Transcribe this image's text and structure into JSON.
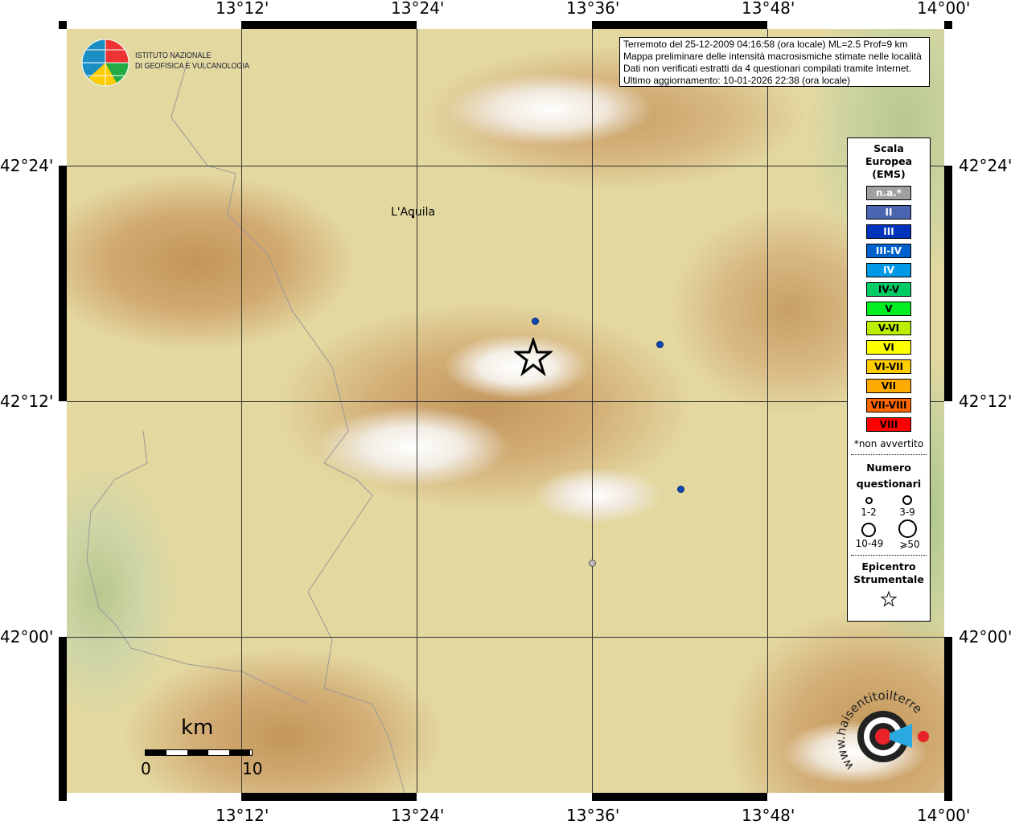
{
  "map": {
    "lon_ticks": [
      "13°12'",
      "13°24'",
      "13°36'",
      "13°48'",
      "14°00'"
    ],
    "lat_ticks": [
      "42°24'",
      "42°12'",
      "42°00'"
    ],
    "places": [
      {
        "name": "L'Aquila"
      }
    ],
    "observations": [
      {
        "lon": 13.54,
        "lat": 42.24,
        "intensity": "III"
      },
      {
        "lon": 13.68,
        "lat": 42.22,
        "intensity": "III"
      },
      {
        "lon": 13.7,
        "lat": 42.1,
        "intensity": "III"
      },
      {
        "lon": 13.6,
        "lat": 42.05,
        "intensity": "n.a.*"
      }
    ],
    "epicenter": {
      "lon": 13.54,
      "lat": 42.19,
      "icon": "star-icon"
    }
  },
  "logo": {
    "text_line1": "ISTITUTO NAZIONALE",
    "text_line2": "DI GEOFISICA E VULCANOLOGIA"
  },
  "info": {
    "lines": [
      "Terremoto del 25-12-2009 04:16:58 (ora locale) ML=2.5 Prof=9 km",
      "Mappa preliminare delle intensità macrosismiche stimate nelle località",
      "Dati non verificati estratti da 4 questionari compilati tramite Internet.",
      "Ultimo aggiornamento: 10-01-2026 22:38 (ora locale)"
    ]
  },
  "legend": {
    "title": [
      "Scala",
      "Europea",
      "(EMS)"
    ],
    "scale": [
      {
        "label": "n.a.*",
        "color": "#a0a0a0",
        "text": "#fff"
      },
      {
        "label": "II",
        "color": "#4a66b0",
        "text": "#fff"
      },
      {
        "label": "III",
        "color": "#0033bb",
        "text": "#fff"
      },
      {
        "label": "III-IV",
        "color": "#0060cc",
        "text": "#fff"
      },
      {
        "label": "IV",
        "color": "#0099e6",
        "text": "#fff"
      },
      {
        "label": "IV-V",
        "color": "#00cc66",
        "text": "#000"
      },
      {
        "label": "V",
        "color": "#00ee22",
        "text": "#000"
      },
      {
        "label": "V-VI",
        "color": "#bbee00",
        "text": "#000"
      },
      {
        "label": "VI",
        "color": "#ffff00",
        "text": "#000"
      },
      {
        "label": "VI-VII",
        "color": "#ffcc00",
        "text": "#000"
      },
      {
        "label": "VII",
        "color": "#ffaa00",
        "text": "#000"
      },
      {
        "label": "VII-VIII",
        "color": "#ff6600",
        "text": "#000"
      },
      {
        "label": "VIII",
        "color": "#ff0000",
        "text": "#000"
      }
    ],
    "note": "*non avvertito",
    "count_title": [
      "Numero",
      "questionari"
    ],
    "counts": [
      "1-2",
      "3-9",
      "10-49",
      "⩾50"
    ],
    "epi_title": [
      "Epicentro",
      "Strumentale"
    ]
  },
  "scalebar": {
    "unit": "km",
    "start": "0",
    "end": "10"
  },
  "bottom_logo": {
    "text": "www.haisentitoilterremoto.it"
  }
}
